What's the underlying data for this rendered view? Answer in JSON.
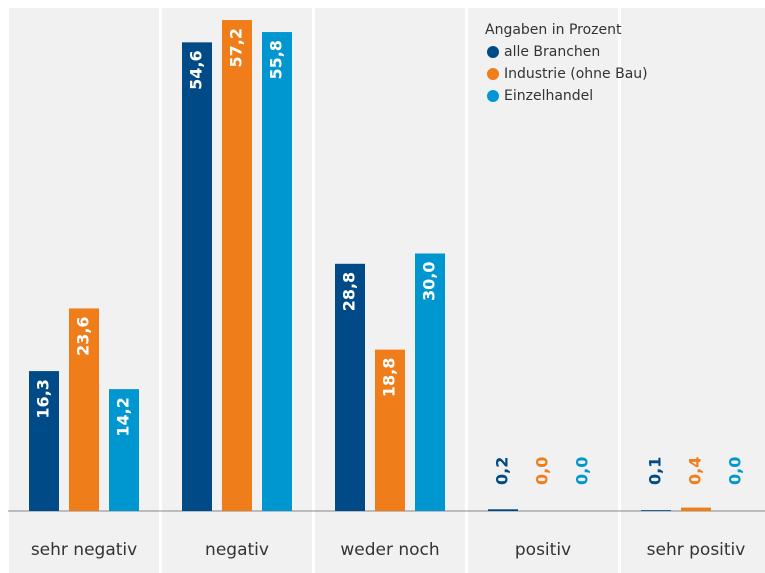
{
  "chart_data": {
    "type": "bar",
    "legend_title": "Angaben in Prozent",
    "categories": [
      "sehr negativ",
      "negativ",
      "weder noch",
      "positiv",
      "sehr positiv"
    ],
    "series": [
      {
        "name": "alle Branchen",
        "color": "#004a87",
        "values": [
          16.3,
          54.6,
          28.8,
          0.2,
          0.1
        ],
        "value_labels": [
          "16,3",
          "54,6",
          "28,8",
          "0,2",
          "0,1"
        ]
      },
      {
        "name": "Industrie (ohne Bau)",
        "color": "#ef7d1a",
        "values": [
          23.6,
          57.2,
          18.8,
          0.0,
          0.4
        ],
        "value_labels": [
          "23,6",
          "57,2",
          "18,8",
          "0,0",
          "0,4"
        ]
      },
      {
        "name": "Einzelhandel",
        "color": "#0097d0",
        "values": [
          14.2,
          55.8,
          30.0,
          0.0,
          0.0
        ],
        "value_labels": [
          "14,2",
          "55,8",
          "30,0",
          "0,0",
          "0,0"
        ]
      }
    ],
    "ylim": [
      0,
      60
    ],
    "legend": "top-right"
  }
}
